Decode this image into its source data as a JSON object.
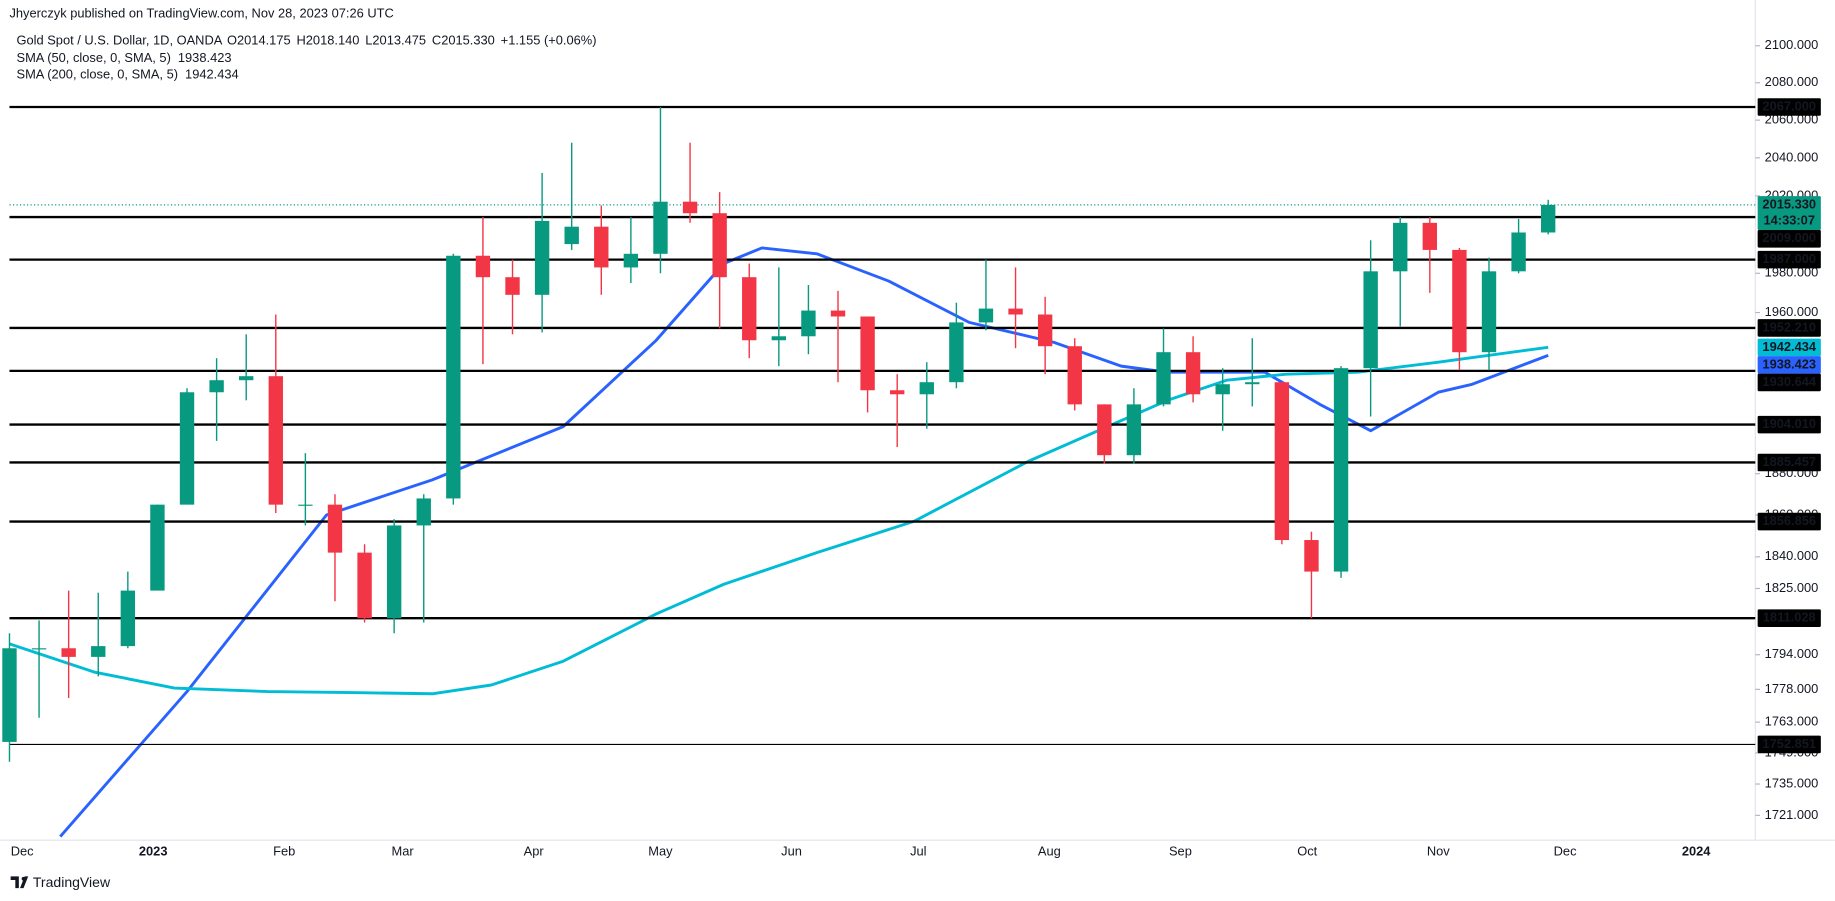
{
  "chart_data": {
    "type": "candlestick",
    "publisher_line": "Jhyerczyk published on TradingView.com, Nov 28, 2023 07:26 UTC",
    "title": "Gold Spot / U.S. Dollar, 1D, OANDA",
    "ohlc_header": [
      "O2014.175",
      "H2018.140",
      "L2013.475",
      "C2015.330",
      "+1.155 (+0.06%)"
    ],
    "brand": "TradingView",
    "up_color": "#089981",
    "down_color": "#f23645",
    "log_scale": true,
    "grid": false,
    "xlim": [
      "2022-11-28",
      "2024-01-15"
    ],
    "ylim": [
      1710,
      2125
    ],
    "xticks": [
      {
        "value": "2022-12-01",
        "label": "Dec"
      },
      {
        "value": "2023-01-01",
        "label": "2023"
      },
      {
        "value": "2023-02-01",
        "label": "Feb"
      },
      {
        "value": "2023-03-01",
        "label": "Mar"
      },
      {
        "value": "2023-04-01",
        "label": "Apr"
      },
      {
        "value": "2023-05-01",
        "label": "May"
      },
      {
        "value": "2023-06-01",
        "label": "Jun"
      },
      {
        "value": "2023-07-01",
        "label": "Jul"
      },
      {
        "value": "2023-08-01",
        "label": "Aug"
      },
      {
        "value": "2023-09-01",
        "label": "Sep"
      },
      {
        "value": "2023-10-01",
        "label": "Oct"
      },
      {
        "value": "2023-11-01",
        "label": "Nov"
      },
      {
        "value": "2023-12-01",
        "label": "Dec"
      },
      {
        "value": "2024-01-01",
        "label": "2024"
      }
    ],
    "yticks": [
      {
        "value": 2100,
        "label": "2100.000"
      },
      {
        "value": 2080,
        "label": "2080.000"
      },
      {
        "value": 2060,
        "label": "2060.000"
      },
      {
        "value": 2040,
        "label": "2040.000"
      },
      {
        "value": 2020,
        "label": "2020.000"
      },
      {
        "value": 1980,
        "label": "1980.000"
      },
      {
        "value": 1960,
        "label": "1960.000"
      },
      {
        "value": 1880,
        "label": "1880.000"
      },
      {
        "value": 1860,
        "label": "1860.000"
      },
      {
        "value": 1840,
        "label": "1840.000"
      },
      {
        "value": 1825,
        "label": "1825.000"
      },
      {
        "value": 1794,
        "label": "1794.000"
      },
      {
        "value": 1778,
        "label": "1778.000"
      },
      {
        "value": 1763,
        "label": "1763.000"
      },
      {
        "value": 1749,
        "label": "1749.000"
      },
      {
        "value": 1735,
        "label": "1735.000"
      },
      {
        "value": 1721,
        "label": "1721.000"
      }
    ],
    "x": [
      "2022-11-28",
      "2022-12-05",
      "2022-12-12",
      "2022-12-19",
      "2022-12-26",
      "2023-01-02",
      "2023-01-09",
      "2023-01-16",
      "2023-01-23",
      "2023-01-30",
      "2023-02-06",
      "2023-02-13",
      "2023-02-20",
      "2023-02-27",
      "2023-03-06",
      "2023-03-13",
      "2023-03-20",
      "2023-03-27",
      "2023-04-03",
      "2023-04-10",
      "2023-04-17",
      "2023-04-24",
      "2023-05-01",
      "2023-05-08",
      "2023-05-15",
      "2023-05-22",
      "2023-05-29",
      "2023-06-05",
      "2023-06-12",
      "2023-06-19",
      "2023-06-26",
      "2023-07-03",
      "2023-07-10",
      "2023-07-17",
      "2023-07-24",
      "2023-07-31",
      "2023-08-07",
      "2023-08-14",
      "2023-08-21",
      "2023-08-28",
      "2023-09-04",
      "2023-09-11",
      "2023-09-18",
      "2023-09-25",
      "2023-10-02",
      "2023-10-09",
      "2023-10-16",
      "2023-10-23",
      "2023-10-30",
      "2023-11-06",
      "2023-11-13",
      "2023-11-20",
      "2023-11-27"
    ],
    "open": [
      1754,
      1797,
      1797,
      1793,
      1798,
      1824,
      1865,
      1920,
      1926,
      1928,
      1865,
      1865,
      1842,
      1811,
      1855,
      1868,
      1989,
      1978,
      1969,
      1995,
      2004,
      1983,
      1990,
      2017,
      2011,
      1978,
      1946,
      1948,
      1961,
      1958,
      1921,
      1919,
      1925,
      1955,
      1962,
      1959,
      1943,
      1914,
      1889,
      1914,
      1940,
      1919,
      1924,
      1925,
      1848,
      1833,
      1932,
      1981,
      2006,
      1992,
      1940,
      1981,
      2001
    ],
    "high": [
      1804,
      1810,
      1824,
      1823,
      1833,
      1865,
      1922,
      1937,
      1949,
      1959,
      1890,
      1870,
      1846,
      1858,
      1870,
      1990,
      2009,
      1987,
      2032,
      2048,
      2015,
      2009,
      2067,
      2048,
      2022,
      1985,
      1983,
      1974,
      1971,
      1958,
      1929,
      1935,
      1965,
      1987,
      1983,
      1968,
      1947,
      1914,
      1922,
      1952,
      1948,
      1932,
      1947,
      1925,
      1852,
      1933,
      1997,
      2009,
      2009,
      1993,
      1988,
      2008,
      2018
    ],
    "low": [
      1745,
      1765,
      1774,
      1784,
      1797,
      1825,
      1866,
      1896,
      1916,
      1861,
      1855,
      1819,
      1809,
      1804,
      1809,
      1865,
      1934,
      1949,
      1950,
      1992,
      1969,
      1975,
      1980,
      2006,
      1952,
      1937,
      1933,
      1939,
      1925,
      1910,
      1893,
      1902,
      1922,
      1951,
      1942,
      1929,
      1911,
      1885,
      1885,
      1913,
      1915,
      1901,
      1913,
      1846,
      1811,
      1830,
      1908,
      1953,
      1970,
      1931,
      1931,
      1980,
      2000
    ],
    "close": [
      1797,
      1797,
      1793,
      1798,
      1824,
      1865,
      1920,
      1926,
      1928,
      1865,
      1865,
      1842,
      1811,
      1855,
      1868,
      1989,
      1978,
      1969,
      2007,
      2004,
      1983,
      1990,
      2017,
      2011,
      1978,
      1946,
      1948,
      1961,
      1958,
      1921,
      1919,
      1925,
      1955,
      1962,
      1959,
      1943,
      1914,
      1889,
      1914,
      1940,
      1919,
      1924,
      1925,
      1848,
      1833,
      1932,
      1981,
      2006,
      1992,
      1940,
      1981,
      2001,
      2015.33
    ],
    "current_price": {
      "value": 2015.33,
      "label": "2015.330",
      "countdown": "14:33:07"
    },
    "overlays": [
      {
        "name": "SMA (50, close, 0, SMA, 5)",
        "color": "#2962ff",
        "last_value": 1938.423,
        "last_value_label": "1938.423",
        "x": [
          "2022-12-10",
          "2023-01-09",
          "2023-02-11",
          "2023-03-08",
          "2023-04-08",
          "2023-04-30",
          "2023-05-16",
          "2023-05-25",
          "2023-06-07",
          "2023-06-24",
          "2023-07-13",
          "2023-08-02",
          "2023-08-18",
          "2023-08-29",
          "2023-09-21",
          "2023-10-04",
          "2023-10-16",
          "2023-11-01",
          "2023-11-09",
          "2023-11-27"
        ],
        "values": [
          1711.6,
          1777,
          1860,
          1877,
          1903,
          1946,
          1985,
          1993,
          1990,
          1976,
          1955,
          1945,
          1933,
          1930,
          1930,
          1914,
          1901,
          1920,
          1924,
          1938.423
        ]
      },
      {
        "name": "SMA (200, close, 0, SMA, 5)",
        "color": "#00bcd4",
        "last_value": 1942.434,
        "last_value_label": "1942.434",
        "x": [
          "2022-11-28",
          "2022-12-18",
          "2023-01-06",
          "2023-01-28",
          "2023-02-17",
          "2023-03-08",
          "2023-03-22",
          "2023-04-08",
          "2023-04-30",
          "2023-05-16",
          "2023-06-07",
          "2023-06-30",
          "2023-07-27",
          "2023-08-18",
          "2023-08-29",
          "2023-09-12",
          "2023-09-26",
          "2023-10-13",
          "2023-11-01",
          "2023-11-27"
        ],
        "values": [
          1799,
          1786,
          1778.6,
          1777,
          1776.5,
          1776,
          1780,
          1791,
          1813,
          1827,
          1842,
          1857,
          1886,
          1906,
          1916,
          1926,
          1929,
          1930,
          1935,
          1942.434
        ]
      }
    ],
    "levels": [
      {
        "value": 2067,
        "label": "2067.000"
      },
      {
        "value": 2009,
        "label": "2009.000"
      },
      {
        "value": 1987,
        "label": "1987.000"
      },
      {
        "value": 1952.21,
        "label": "1952.210"
      },
      {
        "value": 1930.644,
        "label": "1930.644"
      },
      {
        "value": 1904.01,
        "label": "1904.010"
      },
      {
        "value": 1885.457,
        "label": "1885.457"
      },
      {
        "value": 1856.856,
        "label": "1856.856"
      },
      {
        "value": 1811.028,
        "label": "1811.028"
      },
      {
        "value": 1752.851,
        "label": "1752.851"
      }
    ]
  }
}
